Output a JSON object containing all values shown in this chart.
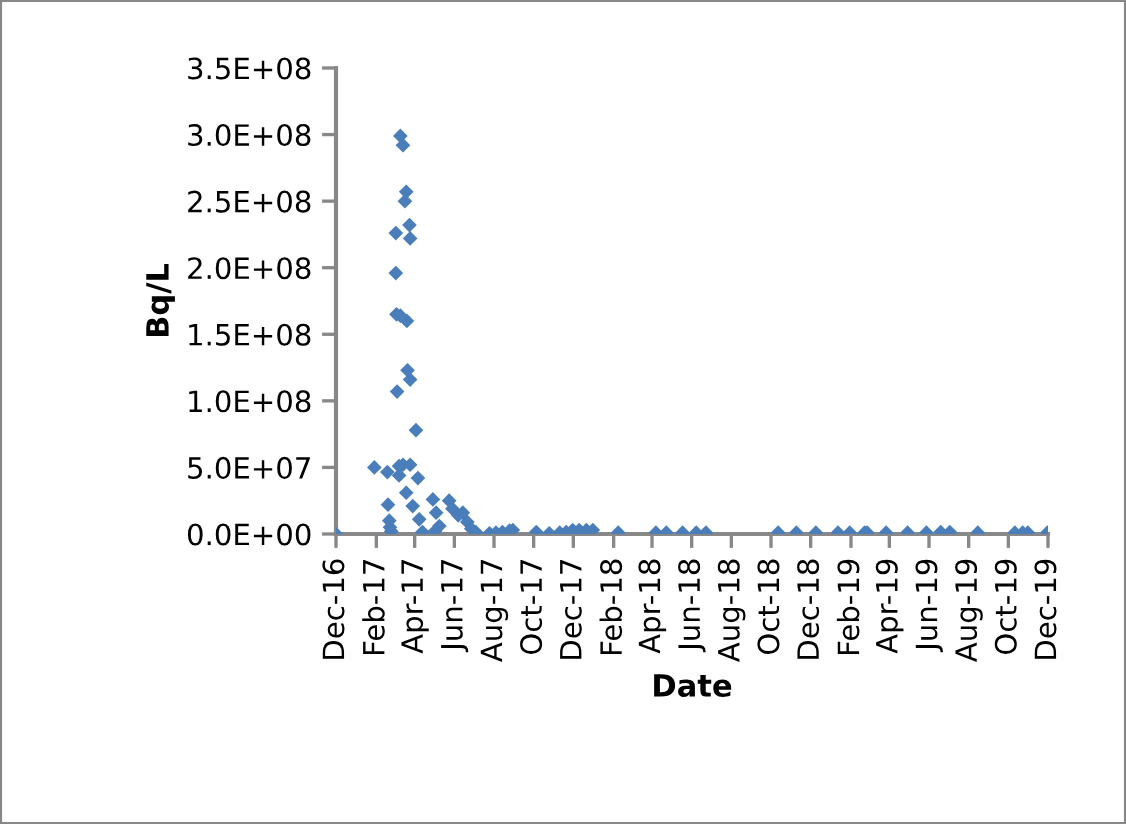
{
  "chart_data": {
    "type": "scatter",
    "xlabel": "Date",
    "ylabel": "Bq/L",
    "marker": "diamond",
    "grid": false,
    "legend": false,
    "xlim": [
      "2016-12-01",
      "2019-12-01"
    ],
    "xticks": [
      {
        "value": "2016-12-01",
        "label": "Dec-16"
      },
      {
        "value": "2017-02-01",
        "label": "Feb-17"
      },
      {
        "value": "2017-04-01",
        "label": "Apr-17"
      },
      {
        "value": "2017-06-01",
        "label": "Jun-17"
      },
      {
        "value": "2017-08-01",
        "label": "Aug-17"
      },
      {
        "value": "2017-10-01",
        "label": "Oct-17"
      },
      {
        "value": "2017-12-01",
        "label": "Dec-17"
      },
      {
        "value": "2018-02-01",
        "label": "Feb-18"
      },
      {
        "value": "2018-04-01",
        "label": "Apr-18"
      },
      {
        "value": "2018-06-01",
        "label": "Jun-18"
      },
      {
        "value": "2018-08-01",
        "label": "Aug-18"
      },
      {
        "value": "2018-10-01",
        "label": "Oct-18"
      },
      {
        "value": "2018-12-01",
        "label": "Dec-18"
      },
      {
        "value": "2019-02-01",
        "label": "Feb-19"
      },
      {
        "value": "2019-04-01",
        "label": "Apr-19"
      },
      {
        "value": "2019-06-01",
        "label": "Jun-19"
      },
      {
        "value": "2019-08-01",
        "label": "Aug-19"
      },
      {
        "value": "2019-10-01",
        "label": "Oct-19"
      },
      {
        "value": "2019-12-01",
        "label": "Dec-19"
      }
    ],
    "ylim": [
      0,
      350000000
    ],
    "yticks": [
      {
        "value": 0,
        "label": "0.0E+00"
      },
      {
        "value": 50000000,
        "label": "5.0E+07"
      },
      {
        "value": 100000000,
        "label": "1.0E+08"
      },
      {
        "value": 150000000,
        "label": "1.5E+08"
      },
      {
        "value": 200000000,
        "label": "2.0E+08"
      },
      {
        "value": 250000000,
        "label": "2.5E+08"
      },
      {
        "value": 300000000,
        "label": "3.0E+08"
      },
      {
        "value": 350000000,
        "label": "3.5E+08"
      }
    ],
    "series": [
      {
        "color": "#4a7ebb",
        "x": [
          "2016-12-01",
          "2017-01-29",
          "2017-02-18",
          "2017-02-19",
          "2017-02-21",
          "2017-02-22",
          "2017-02-24",
          "2017-03-03",
          "2017-03-03",
          "2017-03-04",
          "2017-03-05",
          "2017-03-08",
          "2017-03-08",
          "2017-03-10",
          "2017-03-10",
          "2017-03-14",
          "2017-03-14",
          "2017-03-17",
          "2017-03-19",
          "2017-03-19",
          "2017-03-20",
          "2017-03-21",
          "2017-03-24",
          "2017-03-25",
          "2017-03-25",
          "2017-03-25",
          "2017-03-29",
          "2017-04-03",
          "2017-04-06",
          "2017-04-08",
          "2017-04-13",
          "2017-04-29",
          "2017-05-02",
          "2017-05-04",
          "2017-05-09",
          "2017-05-24",
          "2017-05-29",
          "2017-06-07",
          "2017-06-14",
          "2017-06-21",
          "2017-06-27",
          "2017-07-04",
          "2017-07-25",
          "2017-08-04",
          "2017-08-14",
          "2017-08-25",
          "2017-08-30",
          "2017-10-05",
          "2017-10-25",
          "2017-11-10",
          "2017-11-20",
          "2017-11-30",
          "2017-12-10",
          "2017-12-21",
          "2017-12-31",
          "2018-02-08",
          "2018-04-07",
          "2018-04-23",
          "2018-05-18",
          "2018-06-08",
          "2018-06-23",
          "2018-10-12",
          "2018-11-09",
          "2018-12-09",
          "2019-01-12",
          "2019-01-30",
          "2019-02-22",
          "2019-02-26",
          "2019-03-27",
          "2019-04-29",
          "2019-05-28",
          "2019-06-19",
          "2019-07-03",
          "2019-08-15",
          "2019-10-11",
          "2019-10-23",
          "2019-10-31",
          "2019-11-30"
        ],
        "values": [
          0,
          50000000,
          46500000,
          22000000,
          10000000,
          5000000,
          2000000,
          226000000,
          196000000,
          165000000,
          107000000,
          51000000,
          44000000,
          299000000,
          164000000,
          292000000,
          52000000,
          250000000,
          257000000,
          31000000,
          160000000,
          123000000,
          232000000,
          222000000,
          116000000,
          52000000,
          21000000,
          78000000,
          42000000,
          11000000,
          1500000,
          26000000,
          2000000,
          16000000,
          6000000,
          25000000,
          19000000,
          14000000,
          16000000,
          9000000,
          4000000,
          1500000,
          500000,
          1000000,
          1500000,
          2500000,
          3000000,
          1500000,
          500000,
          1000000,
          1500000,
          3000000,
          3000000,
          3000000,
          3000000,
          1000000,
          1000000,
          1000000,
          1000000,
          1000000,
          1000000,
          1000000,
          1000000,
          1000000,
          1000000,
          1000000,
          1000000,
          1000000,
          1000000,
          1000000,
          1000000,
          1500000,
          1500000,
          1000000,
          1000000,
          1000000,
          1000000,
          1000000
        ]
      }
    ]
  }
}
